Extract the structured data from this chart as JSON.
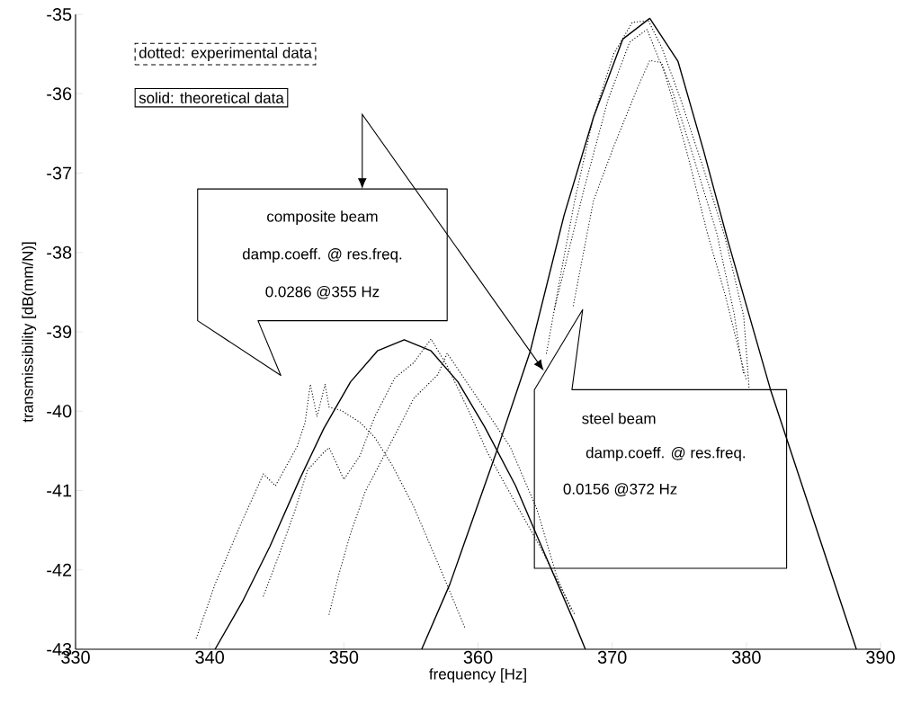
{
  "chart_data": {
    "type": "line",
    "xlabel": "frequency [Hz]",
    "ylabel": "transmissibility [dB(mm/N)]",
    "xlim": [
      330,
      390
    ],
    "ylim": [
      -43,
      -35
    ],
    "xticks": [
      330,
      340,
      350,
      360,
      370,
      380,
      390
    ],
    "yticks": [
      -35,
      -36,
      -37,
      -38,
      -39,
      -40,
      -41,
      -42,
      -43
    ],
    "series": [
      {
        "color": "#000000",
        "line_style": "solid",
        "x": [
          340.4,
          342.5,
          344.5,
          346.7,
          348.5,
          350.5,
          352.5,
          354.5,
          356.5,
          358.5,
          360.5,
          362.8,
          365.0,
          367.2,
          368.0
        ],
        "values": [
          -43.0,
          -42.38,
          -41.7,
          -40.86,
          -40.22,
          -39.63,
          -39.24,
          -39.1,
          -39.24,
          -39.63,
          -40.2,
          -40.94,
          -41.81,
          -42.67,
          -43.0
        ]
      },
      {
        "color": "#000000",
        "line_style": "solid",
        "x": [
          355.8,
          357.9,
          361.4,
          363.9,
          366.4,
          368.6,
          370.8,
          372.8,
          374.9,
          376.8,
          378.6,
          381.8,
          385.1,
          388.2
        ],
        "values": [
          -43.0,
          -42.18,
          -40.5,
          -39.24,
          -37.54,
          -36.3,
          -35.31,
          -35.05,
          -35.59,
          -36.71,
          -37.84,
          -39.73,
          -41.42,
          -43.0
        ]
      },
      {
        "color": "#000000",
        "line_style": "dotted",
        "x": [
          339.0,
          340.4,
          342.3,
          344.0,
          344.9,
          346.5,
          347.1,
          347.5,
          348.0,
          348.6,
          348.9,
          349.8,
          351.2,
          352.3,
          353.6,
          355.2,
          357.2,
          359.0
        ],
        "values": [
          -42.86,
          -42.18,
          -41.43,
          -40.79,
          -40.94,
          -40.45,
          -40.15,
          -39.66,
          -40.07,
          -39.66,
          -39.95,
          -39.99,
          -40.14,
          -40.33,
          -40.68,
          -41.2,
          -41.99,
          -42.72
        ]
      },
      {
        "color": "#000000",
        "line_style": "dotted",
        "x": [
          344.0,
          345.1,
          346.3,
          347.3,
          348.5,
          348.9,
          350.0,
          351.2,
          352.3,
          353.8,
          355.2,
          356.5,
          357.7,
          359.4,
          360.7,
          362.8,
          364.6,
          366.4,
          367.2
        ],
        "values": [
          -42.33,
          -41.84,
          -41.28,
          -40.74,
          -40.52,
          -40.46,
          -40.86,
          -40.56,
          -40.07,
          -39.58,
          -39.39,
          -39.09,
          -39.43,
          -40.03,
          -40.52,
          -41.16,
          -41.7,
          -42.3,
          -42.56
        ]
      },
      {
        "color": "#000000",
        "line_style": "dotted",
        "x": [
          348.9,
          349.6,
          350.5,
          351.6,
          353.0,
          354.3,
          355.2,
          357.0,
          357.7,
          360.3,
          362.4,
          364.4,
          365.9,
          367.0
        ],
        "values": [
          -42.56,
          -42.07,
          -41.54,
          -41.01,
          -40.56,
          -40.14,
          -39.84,
          -39.54,
          -39.27,
          -39.92,
          -40.45,
          -41.24,
          -42.1,
          -42.52
        ]
      },
      {
        "color": "#000000",
        "line_style": "dotted",
        "x": [
          365.1,
          366.1,
          367.2,
          368.6,
          370.1,
          371.5,
          372.7,
          373.7,
          375.1,
          376.8,
          378.4,
          379.8,
          380.2
        ],
        "values": [
          -39.27,
          -38.33,
          -37.35,
          -36.29,
          -35.5,
          -35.1,
          -35.08,
          -35.42,
          -36.07,
          -36.94,
          -37.8,
          -38.8,
          -39.7
        ]
      },
      {
        "color": "#000000",
        "line_style": "dotted",
        "x": [
          365.7,
          367.9,
          369.7,
          371.3,
          372.6,
          373.4,
          374.4,
          375.9,
          377.8,
          379.1,
          379.5,
          379.8
        ],
        "values": [
          -38.71,
          -37.2,
          -36.07,
          -35.35,
          -35.19,
          -35.53,
          -35.92,
          -36.71,
          -37.76,
          -38.78,
          -39.24,
          -39.54
        ]
      },
      {
        "color": "#000000",
        "line_style": "dotted",
        "x": [
          367.1,
          368.6,
          370.1,
          371.9,
          372.8,
          373.7,
          374.6,
          375.7,
          377.1,
          378.4,
          379.5,
          380.0
        ],
        "values": [
          -38.67,
          -37.35,
          -36.67,
          -35.92,
          -35.58,
          -35.61,
          -36.14,
          -36.82,
          -37.76,
          -38.52,
          -39.27,
          -39.61
        ]
      }
    ],
    "annotations": [
      "dotted: experimental data",
      "solid: theoretical data",
      "composite beam",
      "damp.coeff. @  res.freq.",
      "0.0286 @355 Hz",
      "steel beam",
      "damp.coeff. @  res.freq.",
      "0.0156 @372 Hz"
    ]
  }
}
